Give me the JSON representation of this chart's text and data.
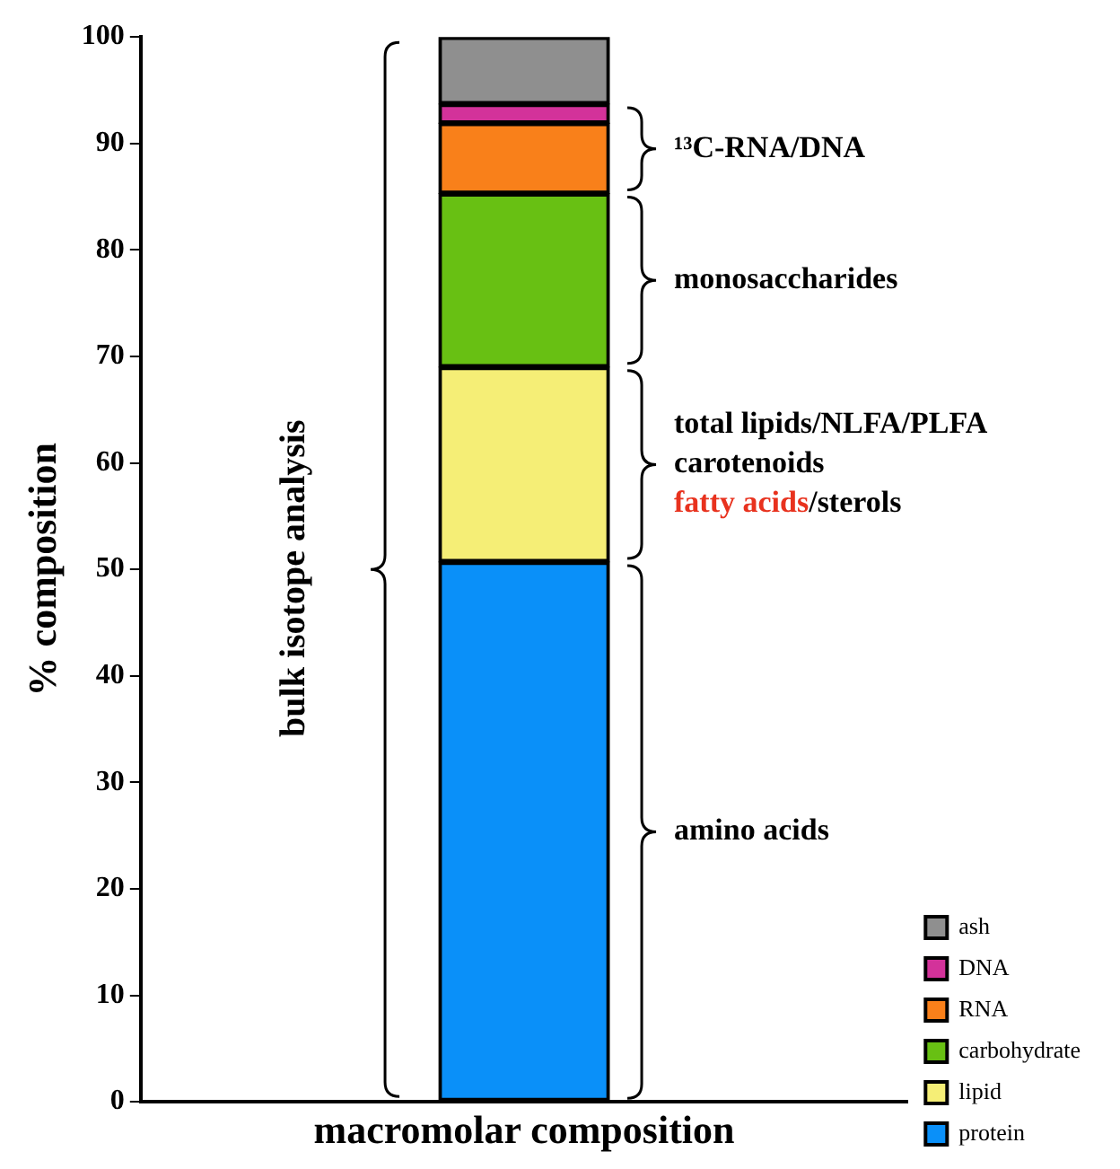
{
  "chart_data": {
    "type": "bar",
    "stacked": true,
    "categories": [
      null
    ],
    "xlabel": "macromolar composition",
    "ylabel": "% composition",
    "ylim": [
      0,
      100
    ],
    "yticks": [
      0,
      10,
      20,
      30,
      40,
      50,
      60,
      70,
      80,
      90,
      100
    ],
    "grid": false,
    "legend": "bottom right",
    "tick_labels": "y",
    "series": [
      {
        "name": "protein",
        "color": "#0a90f9",
        "values": [
          50.7
        ]
      },
      {
        "name": "lipid",
        "color": "#f5ee76",
        "values": [
          18.3
        ]
      },
      {
        "name": "carbohydrate",
        "color": "#68c013",
        "values": [
          16.3
        ]
      },
      {
        "name": "RNA",
        "color": "#f9801a",
        "values": [
          6.6
        ]
      },
      {
        "name": "DNA",
        "color": "#d3329a",
        "values": [
          1.8
        ]
      },
      {
        "name": "ash",
        "color": "#8f8f8f",
        "values": [
          6.3
        ]
      }
    ],
    "annotations": [
      "¹³C-RNA/DNA",
      "monosaccharides",
      "total lipids/NLFA/PLFA",
      "carotenoids",
      "fatty acids",
      "/sterols",
      "amino acids",
      "bulk isotope analysis"
    ]
  }
}
